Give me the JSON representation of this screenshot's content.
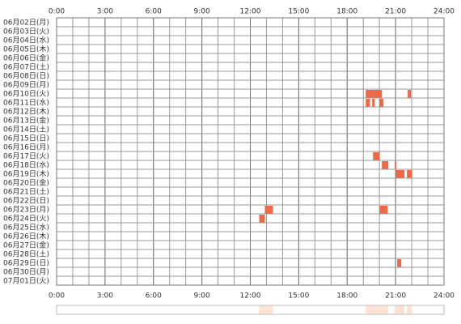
{
  "chart_data": {
    "type": "timeline",
    "xlim": [
      0,
      24
    ],
    "xticks": [
      {
        "value": 0,
        "label": "0:00"
      },
      {
        "value": 3,
        "label": "3:00"
      },
      {
        "value": 6,
        "label": "6:00"
      },
      {
        "value": 9,
        "label": "9:00"
      },
      {
        "value": 12,
        "label": "12:00"
      },
      {
        "value": 15,
        "label": "15:00"
      },
      {
        "value": 18,
        "label": "18:00"
      },
      {
        "value": 21,
        "label": "21:00"
      },
      {
        "value": 24,
        "label": "24:00"
      }
    ],
    "color": "#f06848",
    "summary_color": "#fde2d6",
    "rows": [
      {
        "label": "06月02日(月)",
        "spans": []
      },
      {
        "label": "06月03日(火)",
        "spans": []
      },
      {
        "label": "06月04日(水)",
        "spans": []
      },
      {
        "label": "06月05日(木)",
        "spans": []
      },
      {
        "label": "06月06日(金)",
        "spans": []
      },
      {
        "label": "06月07日(土)",
        "spans": []
      },
      {
        "label": "06月08日(日)",
        "spans": []
      },
      {
        "label": "06月09日(月)",
        "spans": []
      },
      {
        "label": "06月10日(火)",
        "spans": [
          [
            19.15,
            20.15
          ],
          [
            21.75,
            21.95
          ]
        ]
      },
      {
        "label": "06月11日(水)",
        "spans": [
          [
            19.15,
            19.4
          ],
          [
            19.55,
            19.7
          ],
          [
            20.0,
            20.25
          ]
        ]
      },
      {
        "label": "06月12日(木)",
        "spans": []
      },
      {
        "label": "06月13日(金)",
        "spans": []
      },
      {
        "label": "06月14日(土)",
        "spans": []
      },
      {
        "label": "06月15日(日)",
        "spans": []
      },
      {
        "label": "06月16日(月)",
        "spans": []
      },
      {
        "label": "06月17日(火)",
        "spans": [
          [
            19.6,
            20.0
          ]
        ]
      },
      {
        "label": "06月18日(水)",
        "spans": [
          [
            20.15,
            20.55
          ],
          [
            20.95,
            21.05
          ]
        ]
      },
      {
        "label": "06月19日(木)",
        "spans": [
          [
            21.0,
            21.55
          ],
          [
            21.7,
            22.0
          ]
        ]
      },
      {
        "label": "06月20日(金)",
        "spans": []
      },
      {
        "label": "06月21日(土)",
        "spans": []
      },
      {
        "label": "06月22日(日)",
        "spans": []
      },
      {
        "label": "06月23日(月)",
        "spans": [
          [
            12.9,
            13.4
          ],
          [
            20.0,
            20.5
          ]
        ]
      },
      {
        "label": "06月24日(火)",
        "spans": [
          [
            12.55,
            12.9
          ]
        ]
      },
      {
        "label": "06月25日(水)",
        "spans": []
      },
      {
        "label": "06月26日(木)",
        "spans": []
      },
      {
        "label": "06月27日(金)",
        "spans": []
      },
      {
        "label": "06月28日(土)",
        "spans": []
      },
      {
        "label": "06月29日(日)",
        "spans": [
          [
            21.1,
            21.35
          ]
        ]
      },
      {
        "label": "06月30日(月)",
        "spans": []
      },
      {
        "label": "07月01日(火)",
        "spans": []
      }
    ]
  }
}
